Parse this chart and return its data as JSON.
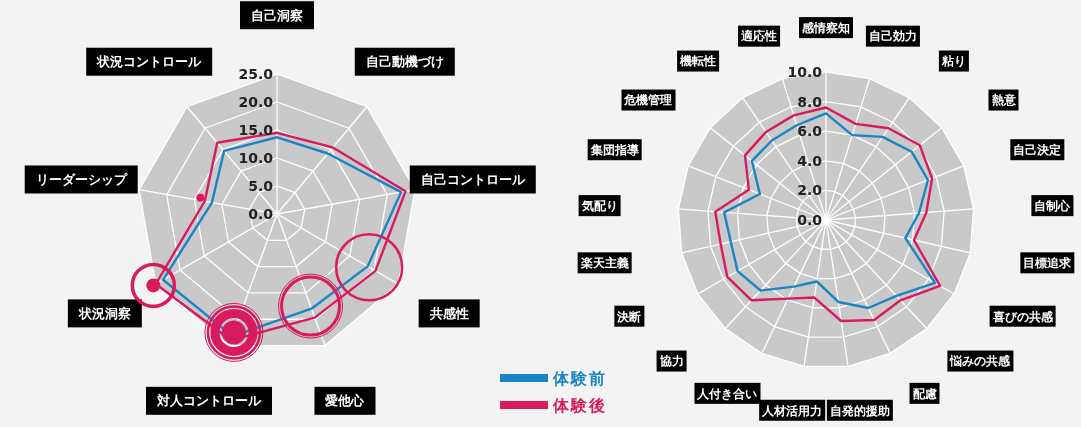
{
  "chart_data": [
    {
      "type": "radar",
      "categories": [
        "自己洞察",
        "自己動機づけ",
        "自己コントロール",
        "共感性",
        "愛他心",
        "対人コントロール",
        "状況洞察",
        "リーダーシップ",
        "状況コントロール"
      ],
      "ylim": [
        0,
        25
      ],
      "yticks": [
        {
          "value": 0,
          "label": "0.0"
        },
        {
          "value": 5,
          "label": "5.0"
        },
        {
          "value": 10,
          "label": "10.0"
        },
        {
          "value": 15,
          "label": "15.0"
        },
        {
          "value": 20,
          "label": "20.0"
        },
        {
          "value": 25,
          "label": "25.0"
        }
      ],
      "grid": true,
      "legend": "bottom right",
      "series": [
        {
          "name": "体験前",
          "color": "#1b84c6",
          "values": [
            13.7,
            14.1,
            22.5,
            18.7,
            18.0,
            23.2,
            23.5,
            11.8,
            14.7
          ]
        },
        {
          "name": "体験後",
          "color": "#d81b5f",
          "values": [
            14.5,
            15.5,
            23.3,
            20.3,
            19.7,
            24.0,
            25.0,
            13.1,
            16.6
          ]
        }
      ]
    },
    {
      "type": "radar",
      "categories": [
        "感情察知",
        "自己効力",
        "粘り",
        "熱意",
        "自己決定",
        "自制心",
        "目標追求",
        "喜びの共感",
        "悩みの共感",
        "配慮",
        "自発的援助",
        "人材活用力",
        "人付き合い",
        "協力",
        "決断",
        "楽天主義",
        "気配り",
        "集団指導",
        "危機管理",
        "機転性",
        "適応性"
      ],
      "ylim": [
        0,
        10
      ],
      "yticks": [
        {
          "value": 0,
          "label": "0.0"
        },
        {
          "value": 2,
          "label": "2.0"
        },
        {
          "value": 4,
          "label": "4.0"
        },
        {
          "value": 6,
          "label": "6.0"
        },
        {
          "value": 8,
          "label": "8.0"
        },
        {
          "value": 10,
          "label": "10.0"
        }
      ],
      "grid": true,
      "series": [
        {
          "name": "体験前",
          "color": "#1b84c6",
          "values": [
            7.2,
            6.0,
            6.8,
            7.4,
            7.4,
            6.3,
            5.5,
            8.5,
            7.0,
            6.6,
            5.6,
            4.2,
            5.0,
            6.5,
            6.9,
            6.6,
            6.9,
            4.8,
            6.4,
            6.5,
            6.7
          ]
        },
        {
          "name": "体験後",
          "color": "#d81b5f",
          "values": [
            7.6,
            6.8,
            7.5,
            8.1,
            7.7,
            6.8,
            6.1,
            8.9,
            7.4,
            7.5,
            6.9,
            5.3,
            5.9,
            7.4,
            7.7,
            7.3,
            7.5,
            5.6,
            7.0,
            7.2,
            7.4
          ]
        }
      ]
    }
  ]
}
